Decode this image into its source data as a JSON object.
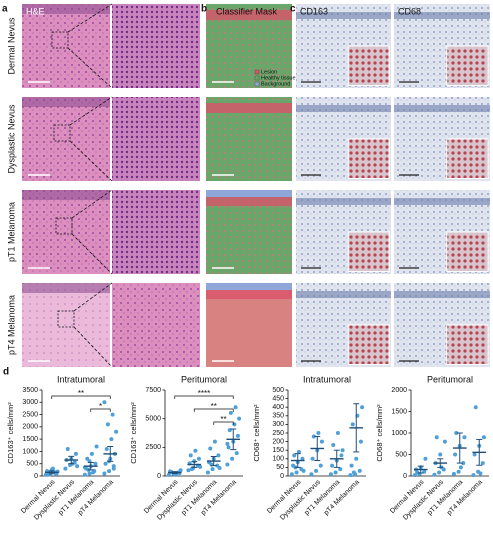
{
  "figure": {
    "panel_labels": [
      "a",
      "b",
      "c",
      "d"
    ],
    "columns": [
      "H&E",
      "Classifier Mask",
      "CD163",
      "CD68"
    ],
    "rows": [
      "Dermal Nevus",
      "Dysplastic Nevus",
      "pT1 Melanoma",
      "pT4 Melanoma"
    ],
    "legend": [
      "Lesion",
      "Healthy tissue",
      "Background"
    ],
    "legend_colors": [
      "#d9536a",
      "#6aa56a",
      "#8fa6d8"
    ]
  },
  "chart_data": [
    {
      "type": "strip",
      "title": "Intratumoral",
      "ylabel": "CD163⁺ cells/mm²",
      "categories": [
        "Dermal Nevus",
        "Dysplastic Nevus",
        "pT1 Melanoma",
        "pT4 Melanoma"
      ],
      "values": [
        [
          50,
          100,
          150,
          200,
          250,
          80,
          120,
          300,
          180,
          60
        ],
        [
          300,
          450,
          550,
          650,
          700,
          900,
          1100,
          500,
          400
        ],
        [
          50,
          100,
          200,
          300,
          400,
          500,
          700,
          900,
          1200,
          250,
          150,
          350,
          600
        ],
        [
          100,
          200,
          300,
          500,
          700,
          900,
          1100,
          1500,
          1800,
          2100,
          2500,
          3000,
          600,
          400
        ]
      ],
      "means": [
        150,
        650,
        400,
        900
      ],
      "errors": [
        60,
        150,
        150,
        300
      ],
      "color": "#4f9fd8",
      "mean_color": "#1f4e79",
      "ylim": [
        0,
        3500
      ],
      "yticks": [
        0,
        500,
        1000,
        1500,
        2000,
        2500,
        3000,
        3500
      ],
      "annotations": [
        {
          "text": "**",
          "between": [
            "Dermal Nevus",
            "pT4 Melanoma"
          ]
        },
        {
          "text": "*",
          "between": [
            "pT1 Melanoma",
            "pT4 Melanoma"
          ]
        }
      ]
    },
    {
      "type": "strip",
      "title": "Peritumoral",
      "ylabel": "CD163⁺ cells/mm²",
      "categories": [
        "Dermal Nevus",
        "Dysplastic Nevus",
        "pT1 Melanoma",
        "pT4 Melanoma"
      ],
      "values": [
        [
          100,
          200,
          300,
          400,
          150,
          250,
          350,
          100,
          500
        ],
        [
          500,
          700,
          900,
          1100,
          1300,
          1500,
          1800,
          2200,
          800,
          600
        ],
        [
          300,
          600,
          900,
          1200,
          1500,
          1800,
          2400,
          3000,
          700,
          1000
        ],
        [
          1000,
          1500,
          2000,
          2500,
          3000,
          3500,
          4000,
          4500,
          5000,
          5500,
          6000,
          2800
        ]
      ],
      "means": [
        300,
        1000,
        1300,
        3200
      ],
      "errors": [
        80,
        250,
        400,
        900
      ],
      "color": "#4f9fd8",
      "mean_color": "#1f4e79",
      "ylim": [
        0,
        7500
      ],
      "yticks": [
        0,
        2500,
        5000,
        7500
      ],
      "annotations": [
        {
          "text": "****",
          "between": [
            "Dermal Nevus",
            "pT4 Melanoma"
          ]
        },
        {
          "text": "**",
          "between": [
            "Dysplastic Nevus",
            "pT4 Melanoma"
          ]
        },
        {
          "text": "**",
          "between": [
            "pT1 Melanoma",
            "pT4 Melanoma"
          ]
        }
      ]
    },
    {
      "type": "strip",
      "title": "Intratumoral",
      "ylabel": "CD68⁺ cells/mm²",
      "categories": [
        "Dermal Nevus",
        "Dysplastic Nevus",
        "pT1 Melanoma",
        "pT4 Melanoma"
      ],
      "values": [
        [
          10,
          20,
          40,
          60,
          80,
          100,
          120,
          140,
          30,
          50
        ],
        [
          10,
          30,
          60,
          100,
          150,
          200,
          230,
          250
        ],
        [
          10,
          20,
          40,
          60,
          90,
          120,
          180,
          250,
          150
        ],
        [
          5,
          10,
          30,
          60,
          100,
          200,
          300,
          350,
          400,
          20
        ]
      ],
      "means": [
        90,
        160,
        100,
        280
      ],
      "errors": [
        40,
        70,
        50,
        140
      ],
      "color": "#4f9fd8",
      "mean_color": "#1f4e79",
      "ylim": [
        0,
        500
      ],
      "yticks": [
        0,
        50,
        100,
        150,
        200,
        250,
        300,
        350,
        400,
        450,
        500
      ],
      "annotations": []
    },
    {
      "type": "strip",
      "title": "Peritumoral",
      "ylabel": "CD68⁺ cells/mm²",
      "categories": [
        "Dermal Nevus",
        "Dysplastic Nevus",
        "pT1 Melanoma",
        "pT4 Melanoma"
      ],
      "values": [
        [
          20,
          50,
          100,
          150,
          200,
          400,
          80
        ],
        [
          30,
          80,
          150,
          300,
          500,
          800,
          900,
          200
        ],
        [
          50,
          100,
          300,
          500,
          700,
          900,
          1000,
          200
        ],
        [
          20,
          100,
          300,
          500,
          700,
          900,
          1600,
          60
        ]
      ],
      "means": [
        150,
        300,
        650,
        550
      ],
      "errors": [
        80,
        100,
        350,
        300
      ],
      "color": "#4f9fd8",
      "mean_color": "#1f4e79",
      "ylim": [
        0,
        2000
      ],
      "yticks": [
        0,
        500,
        1000,
        1500,
        2000
      ],
      "annotations": []
    }
  ]
}
